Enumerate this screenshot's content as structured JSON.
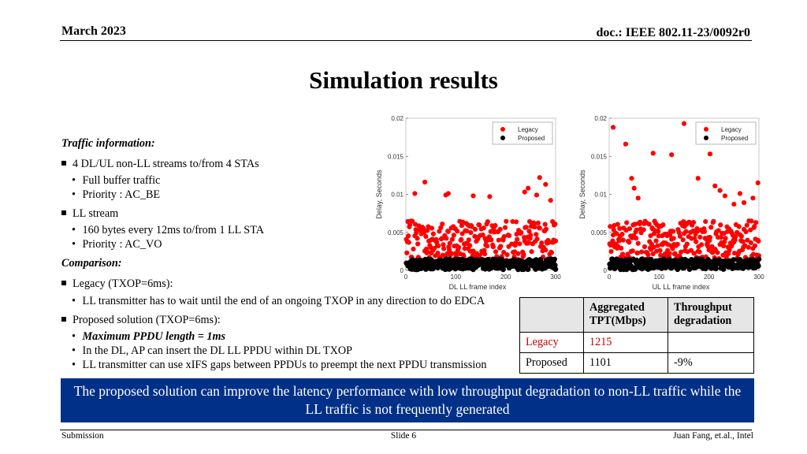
{
  "header": {
    "date": "March 2023",
    "doc": "doc.: IEEE 802.11-23/0092r0"
  },
  "title": "Simulation results",
  "traffic": {
    "heading": "Traffic information:",
    "items": [
      "4 DL/UL non-LL streams to/from 4 STAs",
      "Full buffer traffic",
      "Priority : AC_BE",
      "LL stream",
      "160 bytes every 12ms to/from 1 LL STA",
      "Priority : AC_VO"
    ]
  },
  "comparison": {
    "heading": "Comparison:",
    "items": [
      "Legacy (TXOP=6ms):",
      "LL transmitter has to wait until the end of an ongoing TXOP in any direction to do EDCA",
      "Proposed solution (TXOP=6ms):",
      "Maximum PPDU length = 1ms",
      "In the DL, AP can insert the DL LL PPDU within DL TXOP",
      "LL transmitter can use xIFS gaps between PPDUs to preempt the next PPDU transmission"
    ]
  },
  "table": {
    "headers": [
      "",
      "Aggregated TPT(Mbps)",
      "Throughput degradation"
    ],
    "rows": [
      [
        "Legacy",
        "1215",
        ""
      ],
      [
        "Proposed",
        "1101",
        "-9%"
      ]
    ],
    "legacy_color": "#c00000"
  },
  "banner": {
    "text": "The proposed solution can improve the latency performance with low throughput degradation to non-LL traffic while the LL traffic is not frequently generated",
    "color": "#003087"
  },
  "footer": {
    "left": "Submission",
    "center": "Slide 6",
    "right": "Juan Fang, et.al., Intel"
  },
  "chart_data": [
    {
      "type": "scatter",
      "xlabel": "DL LL frame index",
      "ylabel": "Delay, Seconds",
      "xlim": [
        0,
        300
      ],
      "ylim": [
        0,
        0.02
      ],
      "xticks": [
        "0",
        "100",
        "200",
        "300"
      ],
      "yticks": [
        "0",
        "0.005",
        "0.01",
        "0.015",
        "0.02"
      ],
      "legend_position": "top-right",
      "series": [
        {
          "name": "Legacy",
          "color": "#ff0000",
          "n": 300,
          "base_min": 0.0005,
          "base_max": 0.0065,
          "outliers": [
            [
              18,
              0.0101
            ],
            [
              38,
              0.0116
            ],
            [
              80,
              0.0099
            ],
            [
              85,
              0.0101
            ],
            [
              135,
              0.0098
            ],
            [
              168,
              0.0097
            ],
            [
              238,
              0.0103
            ],
            [
              245,
              0.0108
            ],
            [
              262,
              0.0099
            ],
            [
              268,
              0.0122
            ],
            [
              280,
              0.0113
            ],
            [
              290,
              0.0092
            ]
          ]
        },
        {
          "name": "Proposed",
          "color": "#000000",
          "n": 300,
          "base_min": 0.0001,
          "base_max": 0.0015,
          "outliers": []
        }
      ]
    },
    {
      "type": "scatter",
      "xlabel": "UL LL frame index",
      "ylabel": "Delay, Seconds",
      "xlim": [
        0,
        300
      ],
      "ylim": [
        0,
        0.02
      ],
      "xticks": [
        "0",
        "100",
        "200",
        "300"
      ],
      "yticks": [
        "0",
        "0.005",
        "0.01",
        "0.015",
        "0.02"
      ],
      "legend_position": "top-right",
      "series": [
        {
          "name": "Legacy",
          "color": "#ff0000",
          "n": 300,
          "base_min": 0.0005,
          "base_max": 0.0065,
          "outliers": [
            [
              8,
              0.0188
            ],
            [
              33,
              0.0166
            ],
            [
              45,
              0.0121
            ],
            [
              50,
              0.0108
            ],
            [
              58,
              0.0095
            ],
            [
              88,
              0.0154
            ],
            [
              125,
              0.0152
            ],
            [
              150,
              0.0193
            ],
            [
              178,
              0.0121
            ],
            [
              202,
              0.0153
            ],
            [
              212,
              0.0111
            ],
            [
              222,
              0.0105
            ],
            [
              232,
              0.0098
            ],
            [
              250,
              0.0087
            ],
            [
              262,
              0.0101
            ],
            [
              270,
              0.0089
            ],
            [
              288,
              0.0095
            ],
            [
              298,
              0.0115
            ]
          ]
        },
        {
          "name": "Proposed",
          "color": "#000000",
          "n": 300,
          "base_min": 0.0001,
          "base_max": 0.0015,
          "outliers": []
        }
      ]
    }
  ]
}
